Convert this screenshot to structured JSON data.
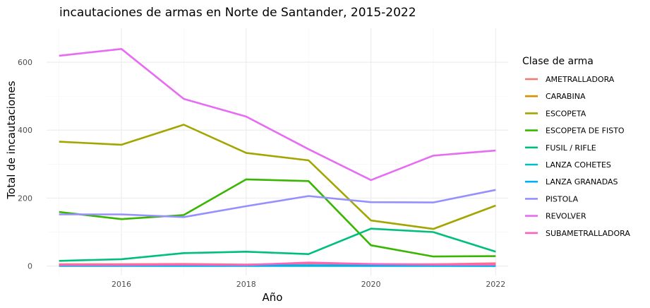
{
  "chart_data": {
    "type": "line",
    "title": "incautaciones de armas en Norte de Santander, 2015-2022",
    "xlabel": "Año",
    "ylabel": "Total de incautaciones",
    "x": [
      2015,
      2016,
      2017,
      2018,
      2019,
      2020,
      2021,
      2022
    ],
    "xlim": [
      2014.8,
      2022.2
    ],
    "ylim": [
      -28,
      700
    ],
    "x_ticks": [
      2016,
      2018,
      2020,
      2022
    ],
    "y_ticks": [
      0,
      200,
      400,
      600
    ],
    "grid": true,
    "legend_title": "Clase de arma",
    "legend_position": "right",
    "series": [
      {
        "name": "AMETRALLADORA",
        "color": "#F8766D",
        "values": [
          5,
          5,
          6,
          4,
          8,
          5,
          5,
          8
        ]
      },
      {
        "name": "CARABINA",
        "color": "#D89000",
        "values": [
          2,
          2,
          2,
          1,
          2,
          1,
          2,
          2
        ]
      },
      {
        "name": "ESCOPETA",
        "color": "#A3A500",
        "values": [
          366,
          357,
          416,
          333,
          311,
          134,
          109,
          178
        ]
      },
      {
        "name": "ESCOPETA DE FISTO",
        "color": "#39B600",
        "values": [
          159,
          138,
          150,
          255,
          250,
          61,
          28,
          29
        ]
      },
      {
        "name": "FUSIL / RIFLE",
        "color": "#00BF7D",
        "values": [
          15,
          20,
          38,
          42,
          35,
          110,
          100,
          42
        ]
      },
      {
        "name": "LANZA COHETES",
        "color": "#00BFC4",
        "values": [
          0,
          0,
          0,
          0,
          0,
          0,
          0,
          0
        ]
      },
      {
        "name": "LANZA GRANADAS",
        "color": "#00B0F6",
        "values": [
          1,
          1,
          1,
          1,
          2,
          1,
          1,
          0
        ]
      },
      {
        "name": "PISTOLA",
        "color": "#9590FF",
        "values": [
          152,
          152,
          144,
          176,
          206,
          188,
          187,
          224
        ]
      },
      {
        "name": "REVOLVER",
        "color": "#E76BF3",
        "values": [
          619,
          639,
          492,
          440,
          344,
          253,
          325,
          340
        ]
      },
      {
        "name": "SUBAMETRALLADORA",
        "color": "#FF62BC",
        "values": [
          3,
          3,
          4,
          3,
          10,
          6,
          4,
          4
        ]
      }
    ]
  }
}
